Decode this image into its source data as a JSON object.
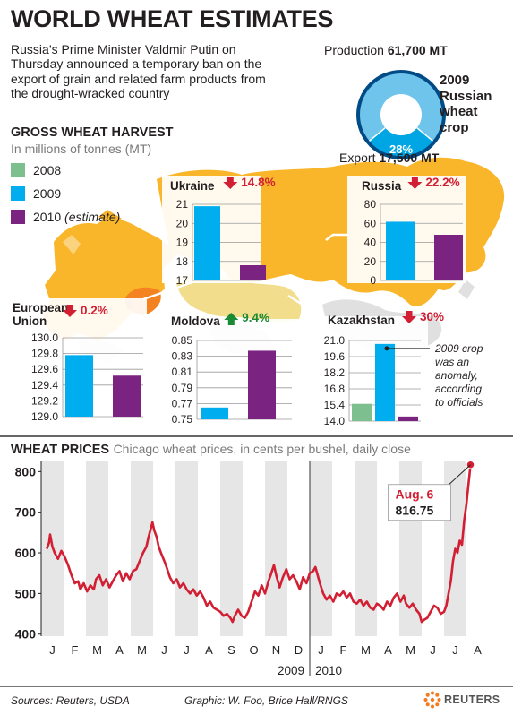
{
  "headline": "WORLD WHEAT ESTIMATES",
  "intro": "Russia’s Prime Minister Valdmir Putin on Thursday announced a temporary ban on the export of grain and related farm products from the drought-wracked country",
  "crop_donut": {
    "production_label": "Production",
    "production_value": "61,700 MT",
    "export_label": "Export",
    "export_value": "17,500 MT",
    "share_label": "28%",
    "share": 0.28,
    "title_lines": [
      "2009",
      "Russian",
      "wheat",
      "crop"
    ],
    "colors": {
      "production": "#6fc4ec",
      "export": "#00a6e3",
      "ring": "#004b85"
    }
  },
  "harvest": {
    "title": "GROSS WHEAT HARVEST",
    "subtitle": "In millions of tonnes (MT)",
    "legend": [
      {
        "label": "2008",
        "suffix": "",
        "color": "#7dbf8e"
      },
      {
        "label": "2009",
        "suffix": "",
        "color": "#00aeef"
      },
      {
        "label": "2010",
        "suffix": "(estimate)",
        "color": "#7b2381"
      }
    ]
  },
  "chart_data": [
    {
      "type": "bar",
      "title": "Ukraine",
      "change": "14.8%",
      "direction": "down",
      "categories": [
        "2009",
        "2010"
      ],
      "values": [
        20.9,
        17.8
      ],
      "yticks": [
        "21",
        "20",
        "19",
        "18",
        "17"
      ],
      "ylim": [
        17,
        21
      ]
    },
    {
      "type": "bar",
      "title": "Russia",
      "change": "22.2%",
      "direction": "down",
      "categories": [
        "2009",
        "2010"
      ],
      "values": [
        61.7,
        48.0
      ],
      "yticks": [
        "80",
        "60",
        "40",
        "20",
        "0"
      ],
      "ylim": [
        0,
        80
      ]
    },
    {
      "type": "bar",
      "title": "European Union",
      "title_lines": [
        "European",
        "Union"
      ],
      "change": "0.2%",
      "direction": "down",
      "categories": [
        "2009",
        "2010"
      ],
      "values": [
        129.78,
        129.52
      ],
      "yticks": [
        "130.0",
        "129.8",
        "129.6",
        "129.4",
        "129.2",
        "129.0"
      ],
      "ylim": [
        129.0,
        130.0
      ]
    },
    {
      "type": "bar",
      "title": "Moldova",
      "change": "9.4%",
      "direction": "up",
      "categories": [
        "2009",
        "2010"
      ],
      "values": [
        0.765,
        0.837
      ],
      "yticks": [
        "0.85",
        "0.83",
        "0.81",
        "0.79",
        "0.77",
        "0.75"
      ],
      "ylim": [
        0.75,
        0.85
      ]
    },
    {
      "type": "bar",
      "title": "Kazakhstan",
      "change": "30%",
      "direction": "down",
      "categories": [
        "2008",
        "2009",
        "2010"
      ],
      "values": [
        15.5,
        20.7,
        14.4
      ],
      "yticks": [
        "21.0",
        "19.6",
        "18.2",
        "16.8",
        "15.4",
        "14.0"
      ],
      "ylim": [
        14.0,
        21.0
      ],
      "annotation_lines": [
        "2009 crop",
        "was an",
        "anomaly,",
        "according",
        "to officials"
      ]
    },
    {
      "type": "line",
      "title": "WHEAT PRICES",
      "subtitle": "Chicago wheat prices, in cents per bushel, daily close",
      "xticks": [
        "J",
        "F",
        "M",
        "A",
        "M",
        "J",
        "J",
        "A",
        "S",
        "O",
        "N",
        "D",
        "J",
        "F",
        "M",
        "A",
        "M",
        "J",
        "J",
        "A"
      ],
      "year_labels": [
        "2009",
        "2010"
      ],
      "yticks": [
        "800",
        "700",
        "600",
        "500",
        "400"
      ],
      "ylim": [
        395,
        825
      ],
      "x_unit": "months since January 2009",
      "series": [
        {
          "name": "",
          "points": [
            [
              0.0,
              610
            ],
            [
              0.1,
              625
            ],
            [
              0.15,
              645
            ],
            [
              0.25,
              615
            ],
            [
              0.35,
              600
            ],
            [
              0.5,
              585
            ],
            [
              0.65,
              605
            ],
            [
              0.8,
              590
            ],
            [
              0.95,
              570
            ],
            [
              1.1,
              545
            ],
            [
              1.25,
              525
            ],
            [
              1.4,
              530
            ],
            [
              1.5,
              510
            ],
            [
              1.65,
              525
            ],
            [
              1.8,
              505
            ],
            [
              1.95,
              520
            ],
            [
              2.1,
              510
            ],
            [
              2.2,
              535
            ],
            [
              2.35,
              545
            ],
            [
              2.5,
              520
            ],
            [
              2.65,
              535
            ],
            [
              2.8,
              515
            ],
            [
              2.95,
              530
            ],
            [
              3.1,
              545
            ],
            [
              3.25,
              555
            ],
            [
              3.4,
              530
            ],
            [
              3.55,
              550
            ],
            [
              3.7,
              535
            ],
            [
              3.85,
              555
            ],
            [
              4.0,
              560
            ],
            [
              4.15,
              580
            ],
            [
              4.3,
              600
            ],
            [
              4.45,
              615
            ],
            [
              4.55,
              640
            ],
            [
              4.65,
              660
            ],
            [
              4.72,
              675
            ],
            [
              4.8,
              655
            ],
            [
              4.9,
              640
            ],
            [
              5.0,
              615
            ],
            [
              5.1,
              600
            ],
            [
              5.25,
              580
            ],
            [
              5.35,
              565
            ],
            [
              5.5,
              540
            ],
            [
              5.65,
              525
            ],
            [
              5.8,
              535
            ],
            [
              5.95,
              515
            ],
            [
              6.1,
              525
            ],
            [
              6.25,
              510
            ],
            [
              6.4,
              500
            ],
            [
              6.55,
              510
            ],
            [
              6.7,
              495
            ],
            [
              6.85,
              505
            ],
            [
              7.0,
              490
            ],
            [
              7.15,
              470
            ],
            [
              7.3,
              480
            ],
            [
              7.45,
              465
            ],
            [
              7.6,
              460
            ],
            [
              7.75,
              455
            ],
            [
              7.9,
              445
            ],
            [
              8.05,
              450
            ],
            [
              8.2,
              440
            ],
            [
              8.3,
              430
            ],
            [
              8.4,
              445
            ],
            [
              8.55,
              460
            ],
            [
              8.7,
              445
            ],
            [
              8.85,
              440
            ],
            [
              9.0,
              455
            ],
            [
              9.15,
              480
            ],
            [
              9.3,
              505
            ],
            [
              9.45,
              495
            ],
            [
              9.6,
              520
            ],
            [
              9.75,
              500
            ],
            [
              9.9,
              530
            ],
            [
              10.0,
              545
            ],
            [
              10.15,
              570
            ],
            [
              10.25,
              545
            ],
            [
              10.4,
              515
            ],
            [
              10.55,
              540
            ],
            [
              10.7,
              560
            ],
            [
              10.85,
              535
            ],
            [
              11.0,
              545
            ],
            [
              11.15,
              530
            ],
            [
              11.3,
              510
            ],
            [
              11.45,
              540
            ],
            [
              11.6,
              525
            ],
            [
              11.75,
              550
            ],
            [
              11.9,
              555
            ],
            [
              12.0,
              565
            ],
            [
              12.1,
              545
            ],
            [
              12.2,
              525
            ],
            [
              12.35,
              500
            ],
            [
              12.5,
              485
            ],
            [
              12.65,
              495
            ],
            [
              12.8,
              480
            ],
            [
              12.95,
              500
            ],
            [
              13.1,
              495
            ],
            [
              13.25,
              505
            ],
            [
              13.4,
              490
            ],
            [
              13.55,
              500
            ],
            [
              13.7,
              480
            ],
            [
              13.85,
              475
            ],
            [
              14.0,
              485
            ],
            [
              14.15,
              470
            ],
            [
              14.3,
              480
            ],
            [
              14.45,
              465
            ],
            [
              14.6,
              460
            ],
            [
              14.75,
              475
            ],
            [
              14.9,
              470
            ],
            [
              15.05,
              460
            ],
            [
              15.2,
              480
            ],
            [
              15.35,
              470
            ],
            [
              15.5,
              490
            ],
            [
              15.65,
              500
            ],
            [
              15.8,
              480
            ],
            [
              15.95,
              495
            ],
            [
              16.05,
              475
            ],
            [
              16.2,
              465
            ],
            [
              16.35,
              475
            ],
            [
              16.5,
              460
            ],
            [
              16.65,
              450
            ],
            [
              16.75,
              430
            ],
            [
              16.85,
              435
            ],
            [
              17.0,
              440
            ],
            [
              17.15,
              455
            ],
            [
              17.3,
              470
            ],
            [
              17.45,
              465
            ],
            [
              17.6,
              450
            ],
            [
              17.75,
              455
            ],
            [
              17.85,
              470
            ],
            [
              17.95,
              500
            ],
            [
              18.05,
              530
            ],
            [
              18.15,
              580
            ],
            [
              18.25,
              610
            ],
            [
              18.35,
              600
            ],
            [
              18.45,
              630
            ],
            [
              18.55,
              620
            ],
            [
              18.65,
              680
            ],
            [
              18.75,
              720
            ],
            [
              18.82,
              760
            ],
            [
              18.88,
              790
            ],
            [
              18.93,
              816.75
            ]
          ]
        }
      ],
      "callout": {
        "date": "Aug. 6",
        "value": "816.75",
        "x": 18.93,
        "y": 816.75
      },
      "line_color": "#d21f33"
    }
  ],
  "footer": {
    "sources": "Sources: Reuters, USDA",
    "graphic": "Graphic: W. Foo, Brice Hall/RNGS",
    "brand": "REUTERS"
  }
}
